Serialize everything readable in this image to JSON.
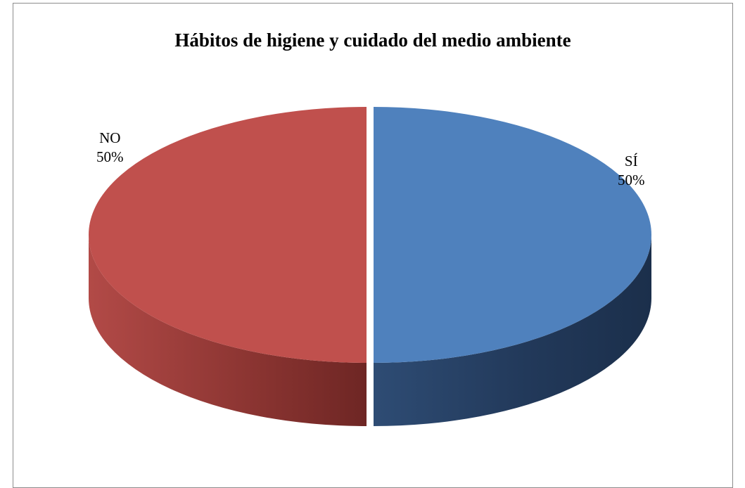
{
  "chart_data": {
    "type": "pie",
    "title": "Hábitos de higiene y cuidado del medio ambiente",
    "categories": [
      "SÍ",
      "NO"
    ],
    "values": [
      50,
      50
    ],
    "labels": [
      {
        "category": "SÍ",
        "percent": "50%"
      },
      {
        "category": "NO",
        "percent": "50%"
      }
    ],
    "colors": {
      "SÍ": {
        "top": "#4f81bd",
        "side": "#2c4a73"
      },
      "NO": {
        "top": "#c0504d",
        "side": "#8c3432"
      }
    },
    "legend": "none",
    "style": "3d-exploded"
  }
}
